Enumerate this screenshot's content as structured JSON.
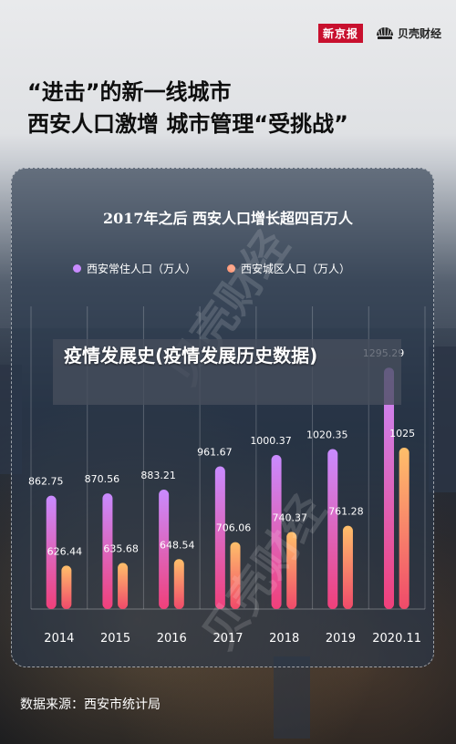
{
  "brands": {
    "left_logo": "新京报",
    "right_logo": "贝壳财经"
  },
  "headline": {
    "line1": "“进击”的新一线城市",
    "line2": "西安人口激增 城市管理“受挑战”"
  },
  "overlay_caption": "疫情发展史(疫情发展历史数据)",
  "watermark": "贝壳财经",
  "source": "数据来源：西安市统计局",
  "colors": {
    "resident_top": "#c98bff",
    "resident_bottom": "#f0407a",
    "urban_top": "#ffbf6a",
    "urban_bottom": "#f04a6a",
    "legend_resident": "#c98bff",
    "legend_urban": "#ff9a7a"
  },
  "chart_data": {
    "type": "bar",
    "title": "2017年之后 西安人口增长超四百万人",
    "categories": [
      "2014",
      "2015",
      "2016",
      "2017",
      "2018",
      "2019",
      "2020.11"
    ],
    "series": [
      {
        "name": "西安常住人口（万人）",
        "values": [
          862.75,
          870.56,
          883.21,
          961.67,
          1000.37,
          1020.35,
          1295.29
        ]
      },
      {
        "name": "西安城区人口（万人）",
        "values": [
          626.44,
          635.68,
          648.54,
          706.06,
          740.37,
          761.28,
          1025
        ]
      }
    ],
    "value_labels": [
      [
        "862.75",
        "870.56",
        "883.21",
        "961.67",
        "1000.37",
        "1020.35",
        "1295.29"
      ],
      [
        "626.44",
        "635.68",
        "648.54",
        "706.06",
        "740.37",
        "761.28",
        "1025"
      ]
    ],
    "legend_position": "top",
    "grid": "vertical"
  }
}
